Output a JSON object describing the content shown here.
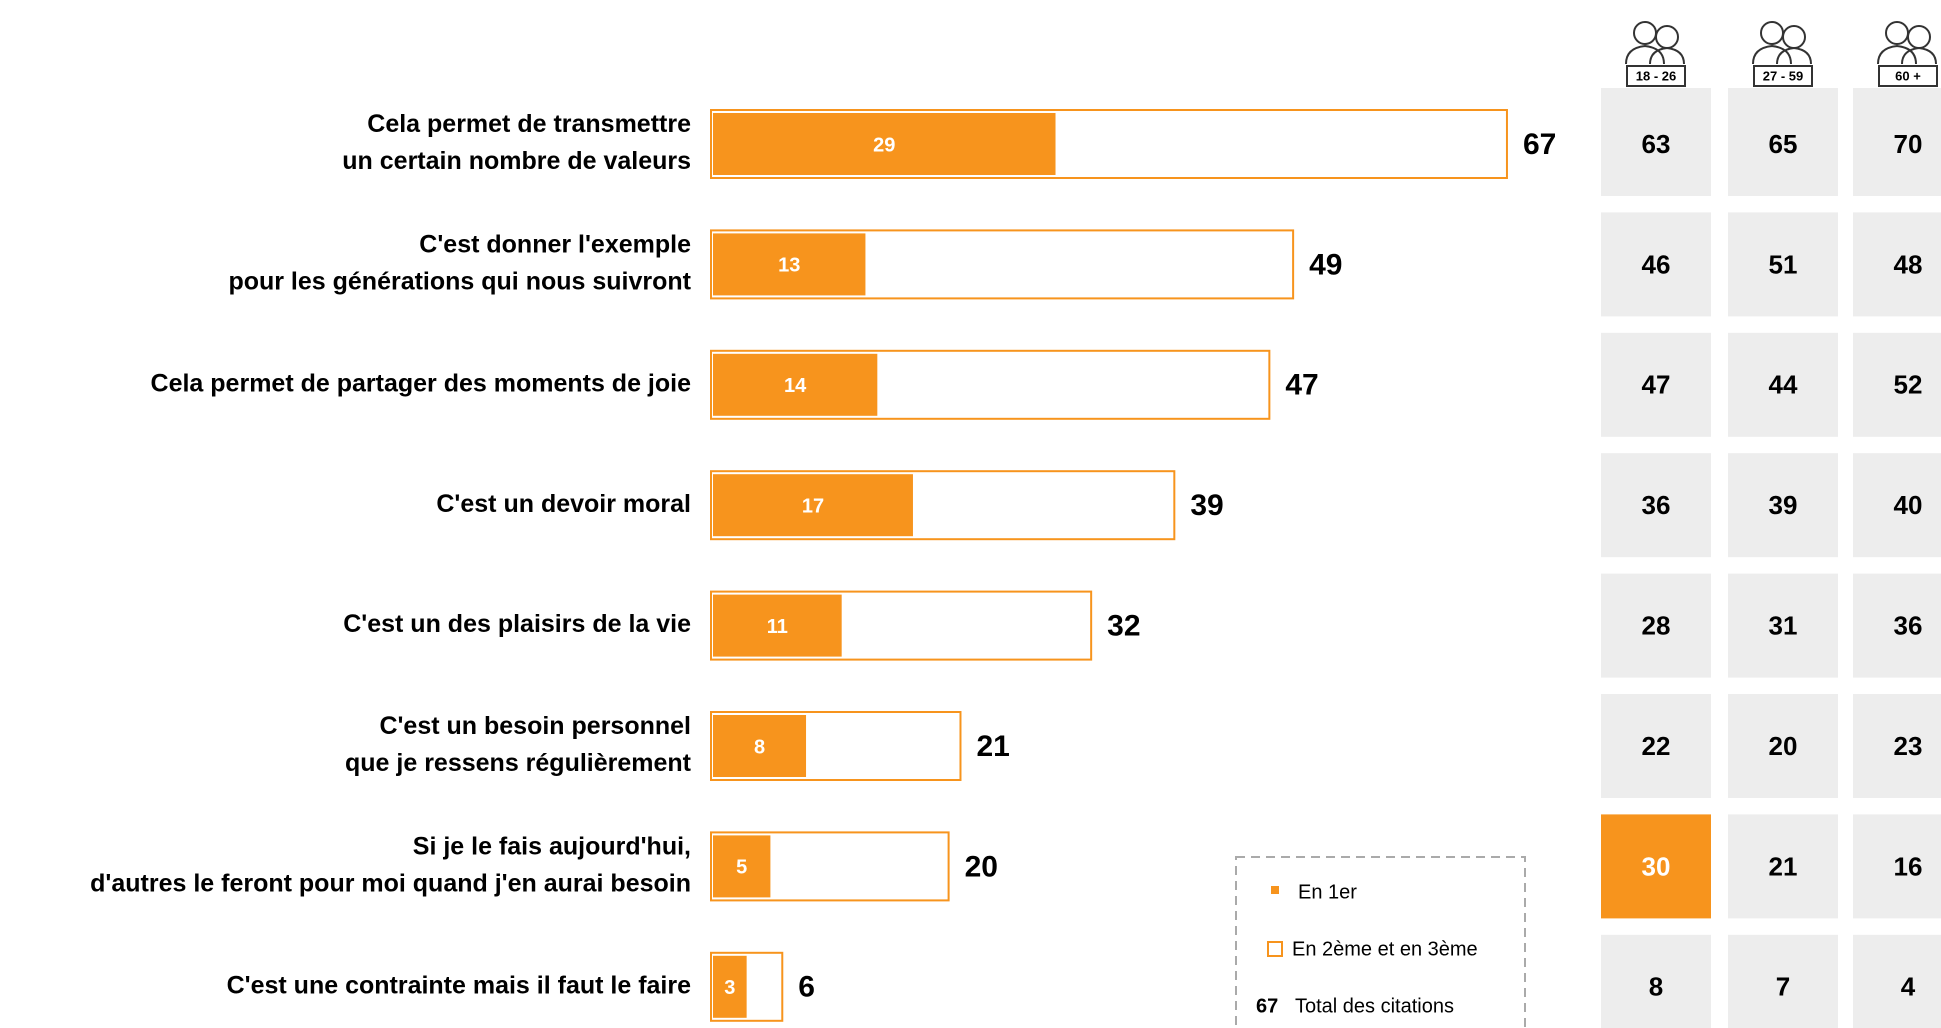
{
  "chart_data": {
    "type": "bar",
    "categories": [
      [
        "Cela permet de transmettre",
        "un certain nombre de valeurs"
      ],
      [
        "C'est donner l'exemple",
        "pour les générations qui nous suivront"
      ],
      [
        "Cela permet de partager des moments de joie"
      ],
      [
        "C'est un devoir moral"
      ],
      [
        "C'est un des plaisirs de la vie"
      ],
      [
        "C'est un besoin personnel",
        "que je ressens régulièrement"
      ],
      [
        "Si je le fais aujourd'hui,",
        "d'autres le feront pour moi quand j'en aurai besoin"
      ],
      [
        "C'est une contrainte mais il faut le faire"
      ]
    ],
    "series": [
      {
        "name": "En 1er",
        "color": "#f7941d",
        "values": [
          29,
          13,
          14,
          17,
          11,
          8,
          5,
          3
        ]
      }
    ],
    "outline": {
      "name": "En 2ème et en 3ème",
      "color": "#f7941d"
    },
    "totals": {
      "name": "Total des citations",
      "values": [
        67,
        49,
        47,
        39,
        32,
        21,
        20,
        6
      ]
    },
    "age_groups": [
      {
        "label": "18 - 26",
        "values": [
          63,
          46,
          47,
          36,
          28,
          22,
          30,
          8
        ]
      },
      {
        "label": "27 - 59",
        "values": [
          65,
          51,
          44,
          39,
          31,
          20,
          21,
          7
        ]
      },
      {
        "label": "60 +",
        "values": [
          70,
          48,
          52,
          40,
          36,
          23,
          16,
          4
        ]
      }
    ],
    "cell_color": "#ededed",
    "highlight_color": "#f7941d",
    "highlights": [
      {
        "group": 0,
        "row": 6
      }
    ]
  }
}
